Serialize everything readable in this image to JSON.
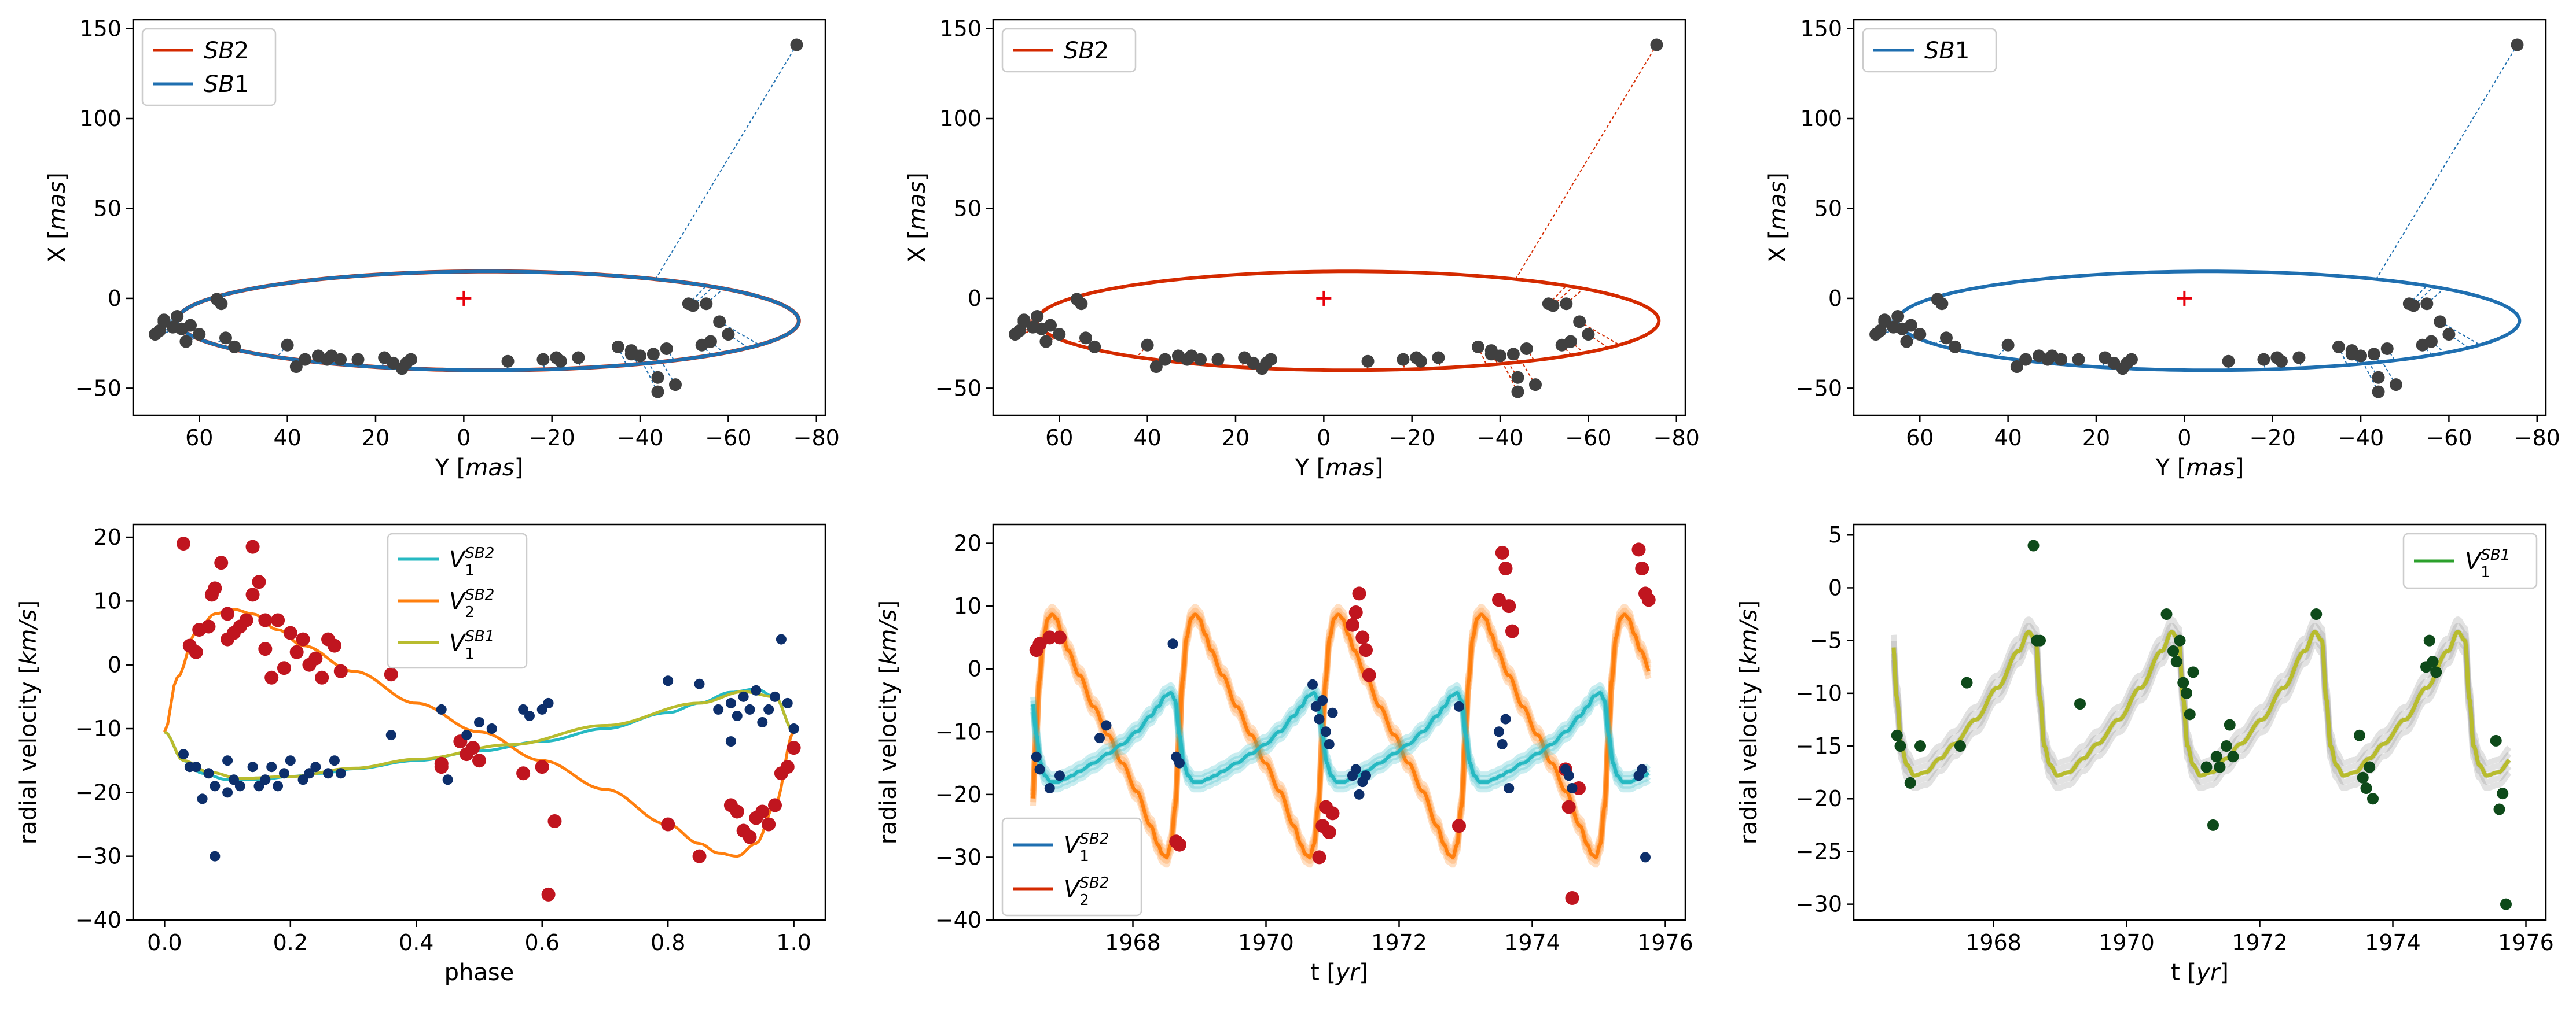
{
  "colors": {
    "sb1": "#1f6fb0",
    "sb2": "#d42a00",
    "cyan": "#26b9c2",
    "orange": "#ff7f0e",
    "olive": "#b8bc2e",
    "green": "#2ca02c",
    "red_pts": "#c0151f",
    "navy_pts": "#0d2f6b",
    "dkgreen_pts": "#0e4a1a",
    "gray_pts": "#404040",
    "cross": "#e8000b"
  },
  "chart_data": [
    {
      "id": "orbit_sb2_sb1",
      "type": "scatter",
      "xlabel_main": "Y [",
      "xlabel_unit": "mas",
      "xlabel_close": "]",
      "ylabel_main": "X [",
      "ylabel_unit": "mas",
      "ylabel_close": "]",
      "xlim": [
        75,
        -82
      ],
      "ylim": [
        -65,
        155
      ],
      "xticks": [
        "60",
        "40",
        "20",
        "0",
        "−20",
        "−40",
        "−60",
        "−80"
      ],
      "xtick_values": [
        60,
        40,
        20,
        0,
        -20,
        -40,
        -60,
        -80
      ],
      "yticks": [
        "−50",
        "0",
        "50",
        "100",
        "150"
      ],
      "ytick_values": [
        -50,
        0,
        50,
        100,
        150
      ],
      "ellipse_colors": [
        "sb2",
        "sb1"
      ],
      "legend": [
        {
          "name": "SB",
          "sub": "2",
          "color": "sb2"
        },
        {
          "name": "SB",
          "sub": "1",
          "color": "sb1"
        }
      ]
    },
    {
      "id": "orbit_sb2",
      "type": "scatter",
      "xlabel_main": "Y [",
      "xlabel_unit": "mas",
      "xlabel_close": "]",
      "ylabel_main": "X [",
      "ylabel_unit": "mas",
      "ylabel_close": "]",
      "xlim": [
        75,
        -82
      ],
      "ylim": [
        -65,
        155
      ],
      "xticks": [
        "60",
        "40",
        "20",
        "0",
        "−20",
        "−40",
        "−60",
        "−80"
      ],
      "xtick_values": [
        60,
        40,
        20,
        0,
        -20,
        -40,
        -60,
        -80
      ],
      "yticks": [
        "−50",
        "0",
        "50",
        "100",
        "150"
      ],
      "ytick_values": [
        -50,
        0,
        50,
        100,
        150
      ],
      "ellipse_colors": [
        "sb2"
      ],
      "legend": [
        {
          "name": "SB",
          "sub": "2",
          "color": "sb2"
        }
      ]
    },
    {
      "id": "orbit_sb1",
      "type": "scatter",
      "xlabel_main": "Y [",
      "xlabel_unit": "mas",
      "xlabel_close": "]",
      "ylabel_main": "X [",
      "ylabel_unit": "mas",
      "ylabel_close": "]",
      "xlim": [
        75,
        -82
      ],
      "ylim": [
        -65,
        155
      ],
      "xticks": [
        "60",
        "40",
        "20",
        "0",
        "−20",
        "−40",
        "−60",
        "−80"
      ],
      "xtick_values": [
        60,
        40,
        20,
        0,
        -20,
        -40,
        -60,
        -80
      ],
      "yticks": [
        "−50",
        "0",
        "50",
        "100",
        "150"
      ],
      "ytick_values": [
        -50,
        0,
        50,
        100,
        150
      ],
      "ellipse_colors": [
        "sb1"
      ],
      "legend": [
        {
          "name": "SB",
          "sub": "1",
          "color": "sb1"
        }
      ]
    },
    {
      "id": "rv_phase",
      "type": "scatter",
      "xlabel": "phase",
      "ylabel_main": "radial velocity [",
      "ylabel_unit": "km/s",
      "ylabel_close": "]",
      "xlim": [
        -0.05,
        1.05
      ],
      "ylim": [
        -40,
        22
      ],
      "xticks": [
        "0.0",
        "0.2",
        "0.4",
        "0.6",
        "0.8",
        "1.0"
      ],
      "xtick_values": [
        0,
        0.2,
        0.4,
        0.6,
        0.8,
        1.0
      ],
      "yticks": [
        "−40",
        "−30",
        "−20",
        "−10",
        "0",
        "10",
        "20"
      ],
      "ytick_values": [
        -40,
        -30,
        -20,
        -10,
        0,
        10,
        20
      ],
      "legend": [
        {
          "name": "V",
          "sub": "1",
          "sup": "SB2",
          "color": "cyan"
        },
        {
          "name": "V",
          "sub": "2",
          "sup": "SB2",
          "color": "orange"
        },
        {
          "name": "V",
          "sub": "1",
          "sup": "SB1",
          "color": "olive"
        }
      ],
      "series": [
        {
          "name": "V1 SB2",
          "color": "cyan",
          "x": [
            0,
            0.03,
            0.06,
            0.1,
            0.15,
            0.2,
            0.25,
            0.3,
            0.4,
            0.5,
            0.6,
            0.7,
            0.8,
            0.85,
            0.9,
            0.94,
            0.97,
            1.0
          ],
          "y": [
            -10.5,
            -15,
            -17,
            -18,
            -18,
            -17.5,
            -17,
            -16.3,
            -15,
            -13.5,
            -12,
            -10,
            -7.5,
            -6,
            -4.3,
            -3.8,
            -5,
            -10.5
          ]
        },
        {
          "name": "V2 SB2",
          "color": "orange",
          "x": [
            0,
            0.02,
            0.05,
            0.08,
            0.11,
            0.14,
            0.18,
            0.22,
            0.3,
            0.4,
            0.5,
            0.6,
            0.7,
            0.8,
            0.85,
            0.88,
            0.91,
            0.94,
            0.97,
            1.0
          ],
          "y": [
            -10.5,
            -2,
            5,
            8,
            8.7,
            8,
            5.5,
            3,
            -1,
            -6,
            -10.5,
            -15,
            -19.5,
            -25,
            -28,
            -29.5,
            -30,
            -28,
            -22,
            -10.5
          ]
        },
        {
          "name": "V1 SB1",
          "color": "olive",
          "x": [
            0.0,
            0.03,
            0.07,
            0.12,
            0.2,
            0.3,
            0.4,
            0.55,
            0.7,
            0.85,
            0.92,
            0.97,
            1.0
          ],
          "y": [
            -10.5,
            -15,
            -16.8,
            -17.8,
            -17.5,
            -16.2,
            -14.8,
            -12.5,
            -9.5,
            -6,
            -4.2,
            -5,
            -10.5
          ]
        }
      ],
      "points_red": {
        "x": [
          0.03,
          0.04,
          0.05,
          0.055,
          0.07,
          0.075,
          0.08,
          0.09,
          0.1,
          0.1,
          0.11,
          0.12,
          0.13,
          0.14,
          0.14,
          0.15,
          0.16,
          0.16,
          0.17,
          0.18,
          0.19,
          0.2,
          0.21,
          0.22,
          0.23,
          0.24,
          0.25,
          0.26,
          0.27,
          0.28,
          0.36,
          0.44,
          0.44,
          0.47,
          0.48,
          0.49,
          0.5,
          0.57,
          0.6,
          0.61,
          0.62,
          0.8,
          0.85,
          0.9,
          0.91,
          0.92,
          0.93,
          0.94,
          0.95,
          0.96,
          0.97,
          0.98,
          0.99,
          1.0
        ],
        "y": [
          19,
          3,
          2,
          5.5,
          6,
          11,
          12,
          16,
          8,
          4,
          5,
          6,
          7,
          18.5,
          11,
          13,
          7,
          2.5,
          -2,
          7,
          -0.5,
          5,
          2,
          4,
          0,
          1,
          -2,
          4,
          3,
          -1,
          -1.5,
          -16,
          -15.5,
          -12,
          -14,
          -13,
          -15,
          -17,
          -16,
          -36,
          -24.5,
          -25,
          -30,
          -22,
          -23,
          -26,
          -27,
          -24,
          -23,
          -25,
          -22,
          -17,
          -16,
          -13
        ]
      },
      "points_navy": {
        "x": [
          0.03,
          0.04,
          0.05,
          0.06,
          0.07,
          0.08,
          0.08,
          0.1,
          0.1,
          0.11,
          0.12,
          0.14,
          0.15,
          0.16,
          0.17,
          0.18,
          0.19,
          0.2,
          0.22,
          0.23,
          0.24,
          0.26,
          0.27,
          0.28,
          0.36,
          0.44,
          0.45,
          0.48,
          0.5,
          0.52,
          0.57,
          0.58,
          0.6,
          0.61,
          0.8,
          0.85,
          0.88,
          0.9,
          0.9,
          0.91,
          0.92,
          0.93,
          0.94,
          0.95,
          0.96,
          0.97,
          0.98,
          0.99,
          1.0
        ],
        "y": [
          -14,
          -16,
          -16,
          -21,
          -17,
          -19,
          -30,
          -20,
          -15,
          -18,
          -19,
          -16,
          -19,
          -18,
          -16,
          -19,
          -17,
          -15,
          -18,
          -17,
          -16,
          -17,
          -15,
          -17,
          -11,
          -7,
          -18,
          -11,
          -9,
          -10,
          -7,
          -8,
          -7,
          -6,
          -2.5,
          -3,
          -7,
          -6,
          -12,
          -8,
          -5,
          -7,
          -4,
          -9,
          -7,
          -5,
          4,
          -6,
          -10
        ]
      }
    },
    {
      "id": "rv_time_sb2",
      "type": "line",
      "xlabel_main": "t [",
      "xlabel_unit": "yr",
      "xlabel_close": "]",
      "ylabel_main": "radial velocity [",
      "ylabel_unit": "km/s",
      "ylabel_close": "]",
      "xlim": [
        1965.9,
        1976.3
      ],
      "ylim": [
        -40,
        23
      ],
      "xticks": [
        "1968",
        "1970",
        "1972",
        "1974",
        "1976"
      ],
      "xtick_values": [
        1968,
        1970,
        1972,
        1974,
        1976
      ],
      "yticks": [
        "−40",
        "−30",
        "−20",
        "−10",
        "0",
        "10",
        "20"
      ],
      "ytick_values": [
        -40,
        -30,
        -20,
        -10,
        0,
        10,
        20
      ],
      "period_yr": 2.15,
      "epoch_yr": 1966.55,
      "legend": [
        {
          "name": "V",
          "sub": "1",
          "sup": "SB2",
          "color": "sb1"
        },
        {
          "name": "V",
          "sub": "2",
          "sup": "SB2",
          "color": "sb2"
        }
      ],
      "points_red": {
        "x": [
          1966.55,
          1966.6,
          1966.75,
          1966.9,
          1968.65,
          1968.7,
          1970.8,
          1970.85,
          1970.9,
          1970.95,
          1971.0,
          1971.3,
          1971.35,
          1971.4,
          1971.45,
          1971.5,
          1971.55,
          1972.9,
          1973.5,
          1973.55,
          1973.6,
          1973.65,
          1973.7,
          1974.5,
          1974.55,
          1974.6,
          1974.7,
          1975.6,
          1975.65,
          1975.7,
          1975.75
        ],
        "y": [
          3,
          4,
          5,
          5,
          -27.5,
          -28,
          -30,
          -25,
          -22,
          -26,
          -23,
          7,
          9,
          12,
          5,
          3,
          -1,
          -25,
          11,
          18.5,
          16,
          10,
          6,
          -16,
          -22,
          -36.5,
          -19,
          19,
          16,
          12,
          11
        ]
      },
      "points_navy": {
        "x": [
          1966.55,
          1966.6,
          1966.75,
          1966.9,
          1967.5,
          1967.6,
          1968.6,
          1968.65,
          1968.7,
          1970.7,
          1970.75,
          1970.8,
          1970.85,
          1970.9,
          1970.95,
          1971.0,
          1971.3,
          1971.35,
          1971.4,
          1971.45,
          1971.5,
          1972.9,
          1973.5,
          1973.55,
          1973.6,
          1973.65,
          1974.5,
          1974.55,
          1974.6,
          1975.6,
          1975.65,
          1975.7
        ],
        "y": [
          -14,
          -16,
          -19,
          -17,
          -11,
          -9,
          4,
          -14,
          -15,
          -2.5,
          -6,
          -8,
          -5,
          -10,
          -12,
          -7,
          -17,
          -16,
          -20,
          -18,
          -17,
          -6,
          -10,
          -12,
          -8,
          -19,
          -16,
          -17,
          -19,
          -17,
          -16,
          -30
        ]
      }
    },
    {
      "id": "rv_time_sb1",
      "type": "line",
      "xlabel_main": "t [",
      "xlabel_unit": "yr",
      "xlabel_close": "]",
      "ylabel_main": "radial velocity [",
      "ylabel_unit": "km/s",
      "ylabel_close": "]",
      "xlim": [
        1965.9,
        1976.3
      ],
      "ylim": [
        -31.5,
        6
      ],
      "xticks": [
        "1968",
        "1970",
        "1972",
        "1974",
        "1976"
      ],
      "xtick_values": [
        1968,
        1970,
        1972,
        1974,
        1976
      ],
      "yticks": [
        "−30",
        "−25",
        "−20",
        "−15",
        "−10",
        "−5",
        "0",
        "5"
      ],
      "ytick_values": [
        -30,
        -25,
        -20,
        -15,
        -10,
        -5,
        0,
        5
      ],
      "period_yr": 2.15,
      "epoch_yr": 1966.55,
      "legend": [
        {
          "name": "V",
          "sub": "1",
          "sup": "SB1",
          "color": "green"
        }
      ],
      "points_green": {
        "x": [
          1966.55,
          1966.6,
          1966.75,
          1966.9,
          1967.5,
          1967.6,
          1968.6,
          1968.65,
          1968.7,
          1969.3,
          1970.6,
          1970.7,
          1970.75,
          1970.8,
          1970.85,
          1970.9,
          1970.95,
          1971.0,
          1971.2,
          1971.3,
          1971.35,
          1971.4,
          1971.5,
          1971.55,
          1971.6,
          1972.85,
          1973.5,
          1973.55,
          1973.6,
          1973.65,
          1973.7,
          1974.5,
          1974.55,
          1974.6,
          1974.65,
          1975.55,
          1975.6,
          1975.65,
          1975.7
        ],
        "y": [
          -14,
          -15,
          -18.5,
          -15,
          -15,
          -9,
          4,
          -5,
          -5,
          -11,
          -2.5,
          -6,
          -7,
          -5,
          -9,
          -10,
          -12,
          -8,
          -17,
          -22.5,
          -16,
          -17,
          -15,
          -13,
          -16,
          -2.5,
          -14,
          -18,
          -19,
          -17,
          -20,
          -7.5,
          -5,
          -7,
          -8,
          -14.5,
          -21,
          -19.5,
          -30
        ]
      }
    }
  ]
}
